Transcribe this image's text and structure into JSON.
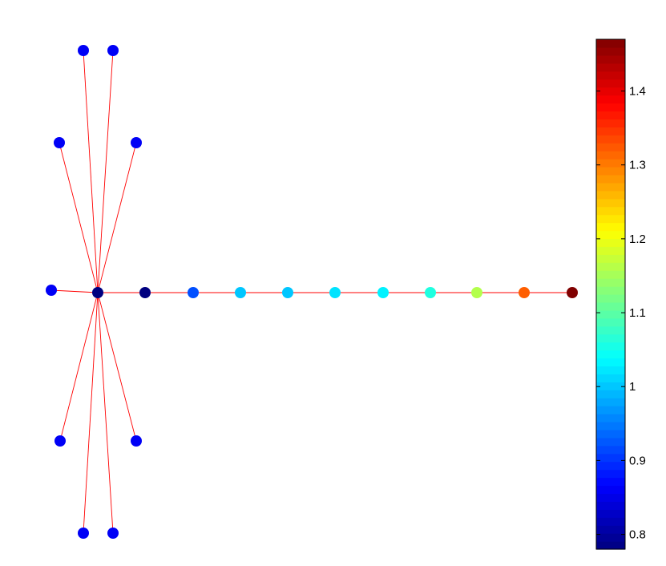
{
  "diagram": {
    "type": "graph",
    "edge_color": "#ff0000",
    "center_node": {
      "id": "c",
      "value": 0.78
    },
    "nodes": [
      {
        "id": "n1",
        "value": 0.86
      },
      {
        "id": "n2",
        "value": 0.86
      },
      {
        "id": "n3",
        "value": 0.86
      },
      {
        "id": "n4",
        "value": 0.86
      },
      {
        "id": "n5",
        "value": 0.86
      },
      {
        "id": "n6",
        "value": 0.86
      },
      {
        "id": "n7",
        "value": 0.86
      },
      {
        "id": "n8",
        "value": 0.86
      },
      {
        "id": "n9",
        "value": 0.86
      },
      {
        "id": "p1",
        "value": 0.78
      },
      {
        "id": "p2",
        "value": 0.92
      },
      {
        "id": "p3",
        "value": 1.0
      },
      {
        "id": "p4",
        "value": 1.0
      },
      {
        "id": "p5",
        "value": 1.02
      },
      {
        "id": "p6",
        "value": 1.03
      },
      {
        "id": "p7",
        "value": 1.06
      },
      {
        "id": "p8",
        "value": 1.16
      },
      {
        "id": "p9",
        "value": 1.32
      },
      {
        "id": "p10",
        "value": 1.47
      }
    ],
    "edges": [
      [
        "c",
        "n1"
      ],
      [
        "c",
        "n2"
      ],
      [
        "c",
        "n3"
      ],
      [
        "c",
        "n4"
      ],
      [
        "c",
        "n5"
      ],
      [
        "c",
        "n6"
      ],
      [
        "c",
        "n7"
      ],
      [
        "c",
        "n8"
      ],
      [
        "c",
        "n9"
      ],
      [
        "c",
        "p1"
      ],
      [
        "p1",
        "p2"
      ],
      [
        "p2",
        "p3"
      ],
      [
        "p3",
        "p4"
      ],
      [
        "p4",
        "p5"
      ],
      [
        "p5",
        "p6"
      ],
      [
        "p6",
        "p7"
      ],
      [
        "p7",
        "p8"
      ],
      [
        "p8",
        "p9"
      ],
      [
        "p9",
        "p10"
      ]
    ]
  },
  "colorbar": {
    "colormap": "jet",
    "range": [
      0.78,
      1.47
    ],
    "ticks": [
      "0.8",
      "0.9",
      "1",
      "1.1",
      "1.2",
      "1.3",
      "1.4"
    ]
  }
}
